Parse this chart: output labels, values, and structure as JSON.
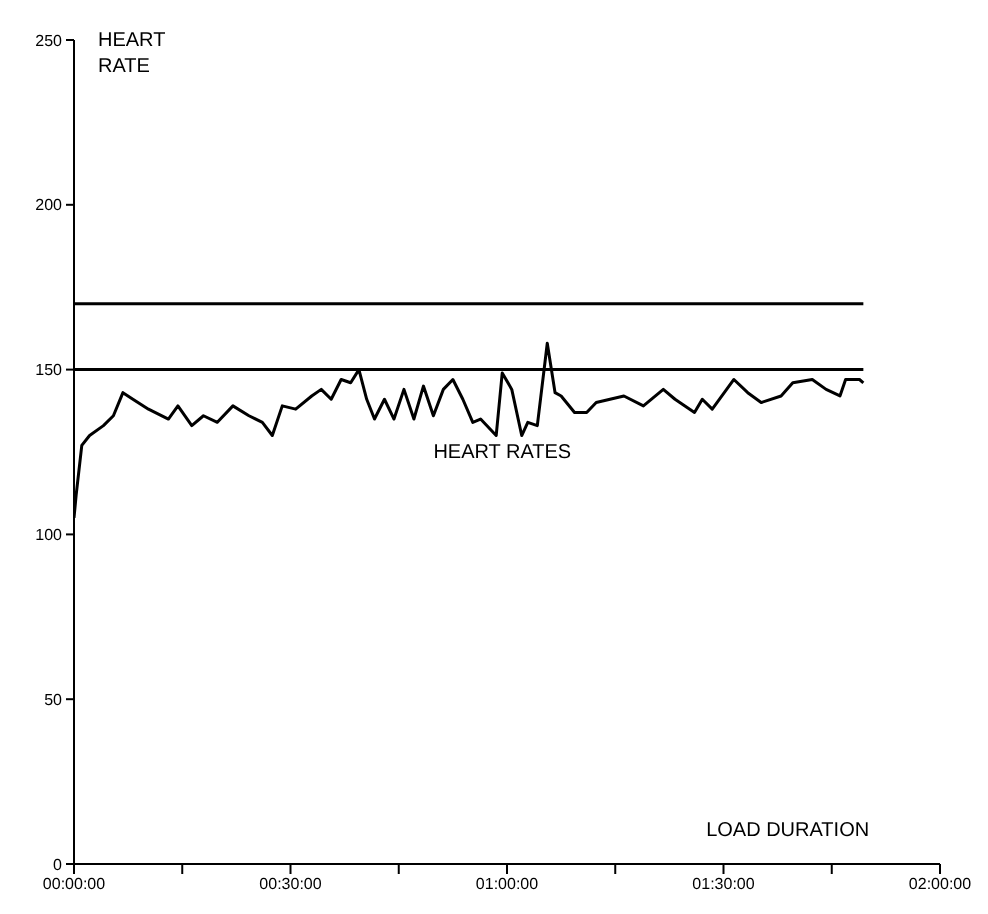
{
  "chart_data": {
    "type": "line",
    "ylabel": "HEART RATE",
    "xlabel": "LOAD DURATION",
    "x": [
      0,
      0.005,
      0.018,
      0.036,
      0.068,
      0.091,
      0.113,
      0.136,
      0.172,
      0.218,
      0.24,
      0.272,
      0.299,
      0.331,
      0.367,
      0.404,
      0.435,
      0.458,
      0.481,
      0.512,
      0.549,
      0.571,
      0.594,
      0.617,
      0.639,
      0.658,
      0.676,
      0.694,
      0.717,
      0.739,
      0.762,
      0.785,
      0.807,
      0.83,
      0.853,
      0.875,
      0.898,
      0.921,
      0.939,
      0.975,
      0.989,
      1.011,
      1.034,
      1.048,
      1.07,
      1.093,
      1.111,
      1.125,
      1.156,
      1.184,
      1.206,
      1.238,
      1.27,
      1.315,
      1.361,
      1.388,
      1.433,
      1.451,
      1.474,
      1.524,
      1.556,
      1.587,
      1.633,
      1.66,
      1.705,
      1.737,
      1.769,
      1.782,
      1.814,
      1.823
    ],
    "series": [
      {
        "name": "HEART RATES",
        "color": "#000000",
        "values": [
          105,
          112,
          127,
          130,
          133,
          136,
          143,
          141,
          138,
          135,
          139,
          133,
          136,
          134,
          139,
          136,
          134,
          130,
          139,
          138,
          142,
          144,
          141,
          147,
          146,
          150,
          141,
          135,
          141,
          135,
          144,
          135,
          145,
          136,
          144,
          147,
          141,
          134,
          135,
          130,
          149,
          144,
          130,
          134,
          133,
          158,
          143,
          142,
          137,
          137,
          140,
          141,
          142,
          139,
          144,
          141,
          137,
          141,
          138,
          147,
          143,
          140,
          142,
          146,
          147,
          144,
          142,
          147,
          147,
          146
        ]
      }
    ],
    "xlim": [
      0,
      2
    ],
    "xticks": [
      {
        "value": 0,
        "label": "00:00:00"
      },
      {
        "value": 0.25,
        "label": null
      },
      {
        "value": 0.5,
        "label": "00:30:00"
      },
      {
        "value": 0.75,
        "label": null
      },
      {
        "value": 1,
        "label": "01:00:00"
      },
      {
        "value": 1.25,
        "label": null
      },
      {
        "value": 1.5,
        "label": "01:30:00"
      },
      {
        "value": 1.75,
        "label": null
      },
      {
        "value": 2,
        "label": "02:00:00"
      }
    ],
    "ylim": [
      0,
      250
    ],
    "yticks": [
      0,
      50,
      100,
      150,
      200,
      250
    ],
    "ref_lines": [
      {
        "axis": "y",
        "value": 170,
        "color": "#000000"
      },
      {
        "axis": "y",
        "value": 150,
        "color": "#000000"
      }
    ],
    "grid": false,
    "legend": false,
    "marker": "none",
    "line_style": "solid"
  }
}
